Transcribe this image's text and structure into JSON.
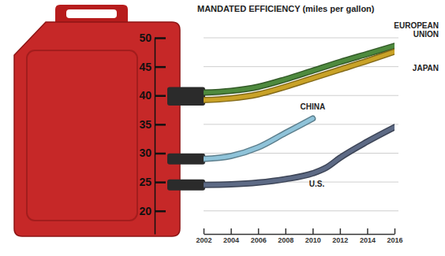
{
  "chart_data": {
    "type": "line",
    "title": "MANDATED EFFICIENCY (miles per gallon)",
    "xlim": [
      2002,
      2016
    ],
    "xticks": [
      2002,
      2004,
      2006,
      2008,
      2010,
      2012,
      2014,
      2016
    ],
    "ylim": [
      16,
      50
    ],
    "yticks": [
      20,
      25,
      30,
      35,
      40,
      45,
      50
    ],
    "grid": true,
    "series": [
      {
        "name": "EUROPEAN UNION",
        "color": "#4e8a3e",
        "x": [
          2002,
          2004,
          2006,
          2008,
          2010,
          2012,
          2014,
          2016
        ],
        "values": [
          40.5,
          40.8,
          41.5,
          42.8,
          44.3,
          45.8,
          47.2,
          48.6
        ]
      },
      {
        "name": "JAPAN",
        "color": "#c9a227",
        "x": [
          2002,
          2004,
          2006,
          2008,
          2010,
          2012,
          2014,
          2016
        ],
        "values": [
          39.2,
          39.5,
          40.2,
          41.5,
          43.0,
          44.5,
          46.0,
          47.6
        ]
      },
      {
        "name": "CHINA",
        "color": "#8fc3d9",
        "x": [
          2002,
          2004,
          2006,
          2008,
          2010
        ],
        "values": [
          29.0,
          29.5,
          31.0,
          33.5,
          36.0
        ]
      },
      {
        "name": "U.S.",
        "color": "#5d6a85",
        "x": [
          2002,
          2004,
          2006,
          2008,
          2010,
          2011,
          2012,
          2014,
          2016
        ],
        "values": [
          24.5,
          24.6,
          24.9,
          25.5,
          26.5,
          27.5,
          29.2,
          32.0,
          34.5
        ]
      }
    ]
  }
}
